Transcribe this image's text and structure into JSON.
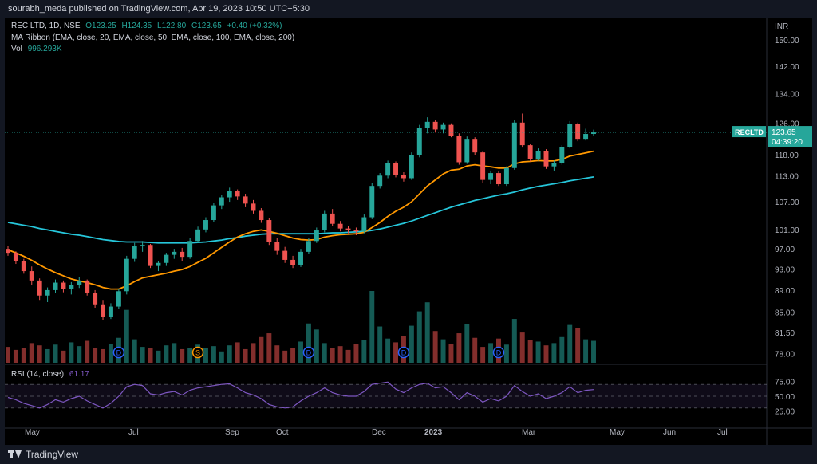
{
  "header": {
    "publisher": "sourabh_meda published on TradingView.com, Apr 19, 2023 10:50 UTC+5:30"
  },
  "legend": {
    "symbol": "REC LTD, 1D, NSE",
    "o": "O123.25",
    "h": "H124.35",
    "l": "L122.80",
    "c": "C123.65",
    "chg": "+0.40 (+0.32%)",
    "ma_ribbon": "MA Ribbon (EMA, close, 20, EMA, close, 50, EMA, close, 100, EMA, close, 200)",
    "vol_label": "Vol",
    "vol_value": "996.293K",
    "rsi_label": "RSI (14, close)",
    "rsi_value": "61.17"
  },
  "price_scale": {
    "currency": "INR",
    "ticks": [
      "150.00",
      "142.00",
      "134.00",
      "126.00",
      "118.00",
      "113.00",
      "107.00",
      "101.00",
      "97.00",
      "93.00",
      "89.00",
      "85.00",
      "81.50",
      "78.00"
    ]
  },
  "rsi_scale": {
    "ticks": [
      "75.00",
      "50.00",
      "25.00"
    ]
  },
  "time_axis": {
    "labels": [
      "May",
      "Jul",
      "Sep",
      "Oct",
      "Dec",
      "2023",
      "Mar",
      "May",
      "Jun",
      "Jul"
    ]
  },
  "price_tag": {
    "symbol": "RECLTD",
    "price": "123.65",
    "countdown": "04:39:20"
  },
  "events": [
    {
      "label": "D",
      "color": "#2962ff"
    },
    {
      "label": "S",
      "color": "#ff9800"
    },
    {
      "label": "D",
      "color": "#2962ff"
    },
    {
      "label": "D",
      "color": "#2962ff"
    },
    {
      "label": "D",
      "color": "#2962ff"
    }
  ],
  "footer": {
    "brand": "TradingView"
  },
  "colors": {
    "up": "#26a69a",
    "down": "#ef5350",
    "ema20": "#ff9800",
    "ema200": "#26c6da",
    "rsi": "#7e57c2",
    "background": "#000000"
  },
  "chart_data": {
    "type": "candlestick",
    "symbol": "RECLTD",
    "period": "1D",
    "price_range": [
      76.5,
      154
    ],
    "scale": "log",
    "candles": [
      [
        97.0,
        97.6,
        95.6,
        96.2
      ],
      [
        96.2,
        96.5,
        94.0,
        94.6
      ],
      [
        94.6,
        95.0,
        92.1,
        92.6
      ],
      [
        92.6,
        93.5,
        90.0,
        90.8
      ],
      [
        90.8,
        91.2,
        87.2,
        88.0
      ],
      [
        88.0,
        89.5,
        86.8,
        89.0
      ],
      [
        89.0,
        91.0,
        88.4,
        90.4
      ],
      [
        90.4,
        90.8,
        88.6,
        89.2
      ],
      [
        89.2,
        90.5,
        88.2,
        90.0
      ],
      [
        90.0,
        91.5,
        89.4,
        90.8
      ],
      [
        90.8,
        91.0,
        88.0,
        88.4
      ],
      [
        88.4,
        89.0,
        85.8,
        86.4
      ],
      [
        86.4,
        87.2,
        83.6,
        84.2
      ],
      [
        84.2,
        86.6,
        83.8,
        86.0
      ],
      [
        86.0,
        89.2,
        85.6,
        88.8
      ],
      [
        88.8,
        95.6,
        88.2,
        95.0
      ],
      [
        95.0,
        98.2,
        94.4,
        97.6
      ],
      [
        97.6,
        98.6,
        96.4,
        97.8
      ],
      [
        97.8,
        98.0,
        93.2,
        93.6
      ],
      [
        93.6,
        94.6,
        92.6,
        94.2
      ],
      [
        94.2,
        96.2,
        93.6,
        95.8
      ],
      [
        95.8,
        97.0,
        95.0,
        96.4
      ],
      [
        96.4,
        97.2,
        94.6,
        95.4
      ],
      [
        95.4,
        99.2,
        95.0,
        98.6
      ],
      [
        98.6,
        101.6,
        98.2,
        101.0
      ],
      [
        101.0,
        103.6,
        100.4,
        103.0
      ],
      [
        103.0,
        106.8,
        102.6,
        106.2
      ],
      [
        106.2,
        108.6,
        105.4,
        108.0
      ],
      [
        108.0,
        110.2,
        107.0,
        109.4
      ],
      [
        109.4,
        109.8,
        107.4,
        108.2
      ],
      [
        108.2,
        108.8,
        105.8,
        106.6
      ],
      [
        106.6,
        107.4,
        104.4,
        105.0
      ],
      [
        105.0,
        105.6,
        102.4,
        103.0
      ],
      [
        103.0,
        103.4,
        97.8,
        98.4
      ],
      [
        98.4,
        99.2,
        95.8,
        96.6
      ],
      [
        96.6,
        97.4,
        94.2,
        94.8
      ],
      [
        94.8,
        95.6,
        93.2,
        93.8
      ],
      [
        93.8,
        97.0,
        93.4,
        96.4
      ],
      [
        96.4,
        99.2,
        96.0,
        98.6
      ],
      [
        98.6,
        101.4,
        98.2,
        100.8
      ],
      [
        100.8,
        105.0,
        100.4,
        104.4
      ],
      [
        104.4,
        105.4,
        101.8,
        102.2
      ],
      [
        102.2,
        102.8,
        100.6,
        101.2
      ],
      [
        101.2,
        101.8,
        100.2,
        100.8
      ],
      [
        100.8,
        101.4,
        99.8,
        100.6
      ],
      [
        100.6,
        104.2,
        100.2,
        103.6
      ],
      [
        103.6,
        111.2,
        103.2,
        110.6
      ],
      [
        110.6,
        113.6,
        110.0,
        113.0
      ],
      [
        113.0,
        116.6,
        112.4,
        116.0
      ],
      [
        116.0,
        116.4,
        112.6,
        113.2
      ],
      [
        113.2,
        113.8,
        111.6,
        112.4
      ],
      [
        112.4,
        118.6,
        112.0,
        118.0
      ],
      [
        118.0,
        125.6,
        117.4,
        124.8
      ],
      [
        124.8,
        127.6,
        123.4,
        126.4
      ],
      [
        126.4,
        126.8,
        123.6,
        124.4
      ],
      [
        124.4,
        126.2,
        123.4,
        125.6
      ],
      [
        125.6,
        126.0,
        122.4,
        122.8
      ],
      [
        122.8,
        123.4,
        115.6,
        116.2
      ],
      [
        116.2,
        122.6,
        115.8,
        122.0
      ],
      [
        122.0,
        122.4,
        118.0,
        118.6
      ],
      [
        118.6,
        119.0,
        111.2,
        112.0
      ],
      [
        112.0,
        114.2,
        111.0,
        113.6
      ],
      [
        113.6,
        114.0,
        110.6,
        111.0
      ],
      [
        111.0,
        115.2,
        110.6,
        114.8
      ],
      [
        114.8,
        127.0,
        114.4,
        126.2
      ],
      [
        126.2,
        128.6,
        119.8,
        120.4
      ],
      [
        120.4,
        120.8,
        116.4,
        117.0
      ],
      [
        117.0,
        119.6,
        116.6,
        119.0
      ],
      [
        119.0,
        119.4,
        114.6,
        115.2
      ],
      [
        115.2,
        116.6,
        114.2,
        116.0
      ],
      [
        116.0,
        120.4,
        115.6,
        120.0
      ],
      [
        120.0,
        126.6,
        119.6,
        125.8
      ],
      [
        125.8,
        126.2,
        121.4,
        122.0
      ],
      [
        122.0,
        124.6,
        121.6,
        123.25
      ],
      [
        123.25,
        124.35,
        122.8,
        123.65
      ]
    ],
    "volume": [
      2.1,
      1.7,
      1.9,
      2.6,
      2.3,
      1.8,
      2.4,
      1.6,
      2.7,
      2.2,
      2.9,
      2.0,
      1.8,
      2.5,
      3.3,
      7.0,
      3.1,
      2.1,
      1.9,
      1.6,
      2.3,
      2.6,
      1.8,
      2.0,
      2.4,
      1.9,
      2.2,
      1.5,
      2.3,
      2.7,
      1.8,
      2.6,
      3.4,
      3.9,
      2.3,
      1.6,
      2.0,
      2.8,
      5.2,
      4.4,
      2.6,
      1.9,
      2.2,
      1.7,
      2.5,
      3.0,
      9.5,
      4.8,
      3.2,
      2.7,
      3.5,
      4.9,
      6.8,
      8.0,
      4.2,
      3.1,
      2.5,
      3.9,
      5.1,
      3.3,
      2.1,
      2.6,
      3.2,
      2.4,
      5.8,
      4.0,
      3.0,
      2.8,
      2.3,
      2.6,
      3.4,
      5.0,
      4.6,
      3.1,
      2.9
    ],
    "ema20": [
      96.8,
      96.2,
      95.5,
      94.7,
      93.8,
      93.0,
      92.3,
      91.7,
      91.1,
      90.7,
      90.4,
      90.0,
      89.5,
      89.2,
      89.2,
      89.8,
      90.6,
      91.3,
      91.6,
      91.9,
      92.2,
      92.6,
      92.9,
      93.5,
      94.3,
      95.1,
      96.2,
      97.3,
      98.4,
      99.4,
      100.1,
      100.6,
      100.9,
      100.6,
      100.2,
      99.7,
      99.2,
      98.9,
      98.8,
      98.9,
      99.4,
      99.7,
      99.9,
      100.0,
      100.1,
      100.4,
      101.4,
      102.5,
      103.8,
      104.9,
      105.8,
      107.0,
      108.8,
      110.6,
      112.0,
      113.4,
      114.3,
      114.5,
      115.3,
      115.6,
      115.3,
      115.1,
      114.8,
      114.8,
      115.8,
      116.3,
      116.4,
      116.6,
      116.5,
      116.5,
      116.9,
      117.7,
      118.1,
      118.5,
      118.9
    ],
    "ema200": [
      102.5,
      102.2,
      101.9,
      101.6,
      101.2,
      100.9,
      100.6,
      100.3,
      100.0,
      99.8,
      99.5,
      99.2,
      98.9,
      98.7,
      98.5,
      98.4,
      98.4,
      98.4,
      98.3,
      98.2,
      98.2,
      98.2,
      98.2,
      98.2,
      98.3,
      98.4,
      98.6,
      98.8,
      99.1,
      99.3,
      99.6,
      99.8,
      100.0,
      100.1,
      100.1,
      100.1,
      100.1,
      100.1,
      100.1,
      100.1,
      100.2,
      100.3,
      100.3,
      100.4,
      100.5,
      100.6,
      100.8,
      101.1,
      101.5,
      101.9,
      102.3,
      102.8,
      103.4,
      104.0,
      104.6,
      105.2,
      105.8,
      106.3,
      106.8,
      107.3,
      107.7,
      108.1,
      108.5,
      108.8,
      109.2,
      109.7,
      110.1,
      110.5,
      110.8,
      111.1,
      111.4,
      111.8,
      112.1,
      112.4,
      112.7
    ],
    "rsi": [
      48,
      44,
      38,
      34,
      30,
      36,
      44,
      40,
      46,
      50,
      42,
      36,
      30,
      38,
      50,
      66,
      70,
      68,
      54,
      52,
      56,
      58,
      52,
      60,
      64,
      66,
      68,
      70,
      71,
      64,
      56,
      52,
      46,
      36,
      32,
      30,
      32,
      42,
      50,
      56,
      64,
      56,
      52,
      50,
      50,
      58,
      70,
      72,
      74,
      62,
      56,
      64,
      70,
      72,
      64,
      66,
      56,
      44,
      56,
      50,
      40,
      46,
      42,
      50,
      68,
      58,
      50,
      54,
      46,
      50,
      56,
      66,
      56,
      60,
      61.17
    ],
    "rsi_range": [
      0,
      100
    ],
    "rsi_levels": [
      70,
      50,
      30
    ]
  }
}
